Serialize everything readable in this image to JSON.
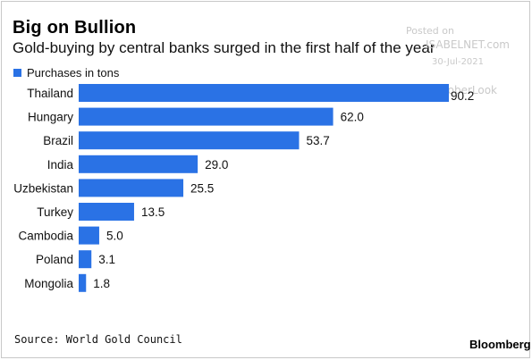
{
  "chart_data": {
    "type": "bar",
    "orientation": "horizontal",
    "title": "Big on Bullion",
    "subtitle": "Gold-buying by central banks surged in the first half of the year",
    "categories": [
      "Thailand",
      "Hungary",
      "Brazil",
      "India",
      "Uzbekistan",
      "Turkey",
      "Cambodia",
      "Poland",
      "Mongolia"
    ],
    "series": [
      {
        "name": "Purchases in tons",
        "values": [
          90.2,
          62.0,
          53.7,
          29.0,
          25.5,
          13.5,
          5.0,
          3.1,
          1.8
        ],
        "value_labels": [
          "90.2",
          "62.0",
          "53.7",
          "29.0",
          "25.5",
          "13.5",
          "5.0",
          "3.1",
          "1.8"
        ]
      }
    ],
    "xlim": [
      0,
      90.2
    ],
    "grid": false,
    "legend_position": "top-left",
    "bar_color": "#2a72e5"
  },
  "source": "Source: World Gold Council",
  "brand": "Bloomberg",
  "watermark": {
    "line1": "Posted on",
    "line2": "ISABELNET.com",
    "line3": "30-Jul-2021",
    "line4": "@SoberLook"
  }
}
